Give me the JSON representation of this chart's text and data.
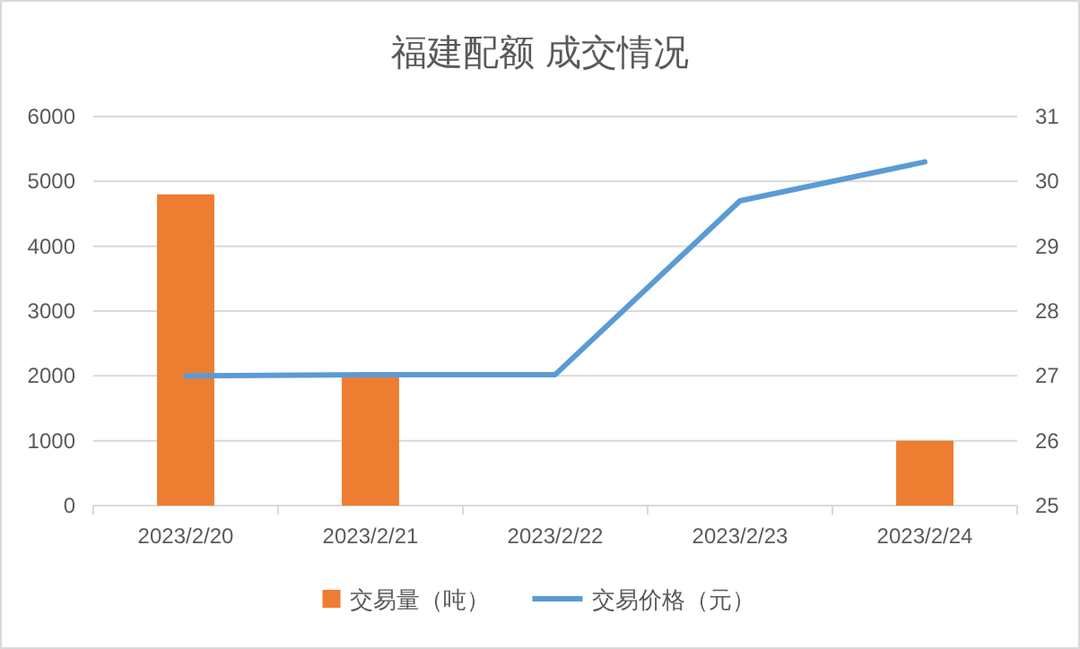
{
  "chart_data": {
    "type": "bar",
    "title": "福建配额 成交情况",
    "categories": [
      "2023/2/20",
      "2023/2/21",
      "2023/2/22",
      "2023/2/23",
      "2023/2/24"
    ],
    "series": [
      {
        "name": "交易量（吨）",
        "color": "#ed7d31",
        "values": [
          4800,
          1980,
          null,
          null,
          1000
        ]
      },
      {
        "name": "交易价格（元）",
        "type": "line",
        "axis": "y2",
        "color": "#5b9bd5",
        "values": [
          27.0,
          27.02,
          27.02,
          29.7,
          30.3
        ]
      }
    ],
    "ylim": [
      0,
      6000
    ],
    "yticks": [
      0,
      1000,
      2000,
      3000,
      4000,
      5000,
      6000
    ],
    "y2lim": [
      25,
      31
    ],
    "y2ticks": [
      25,
      26,
      27,
      28,
      29,
      30,
      31
    ],
    "grid": "y",
    "legend": "bottom",
    "marker": "none",
    "line_style": "solid"
  }
}
